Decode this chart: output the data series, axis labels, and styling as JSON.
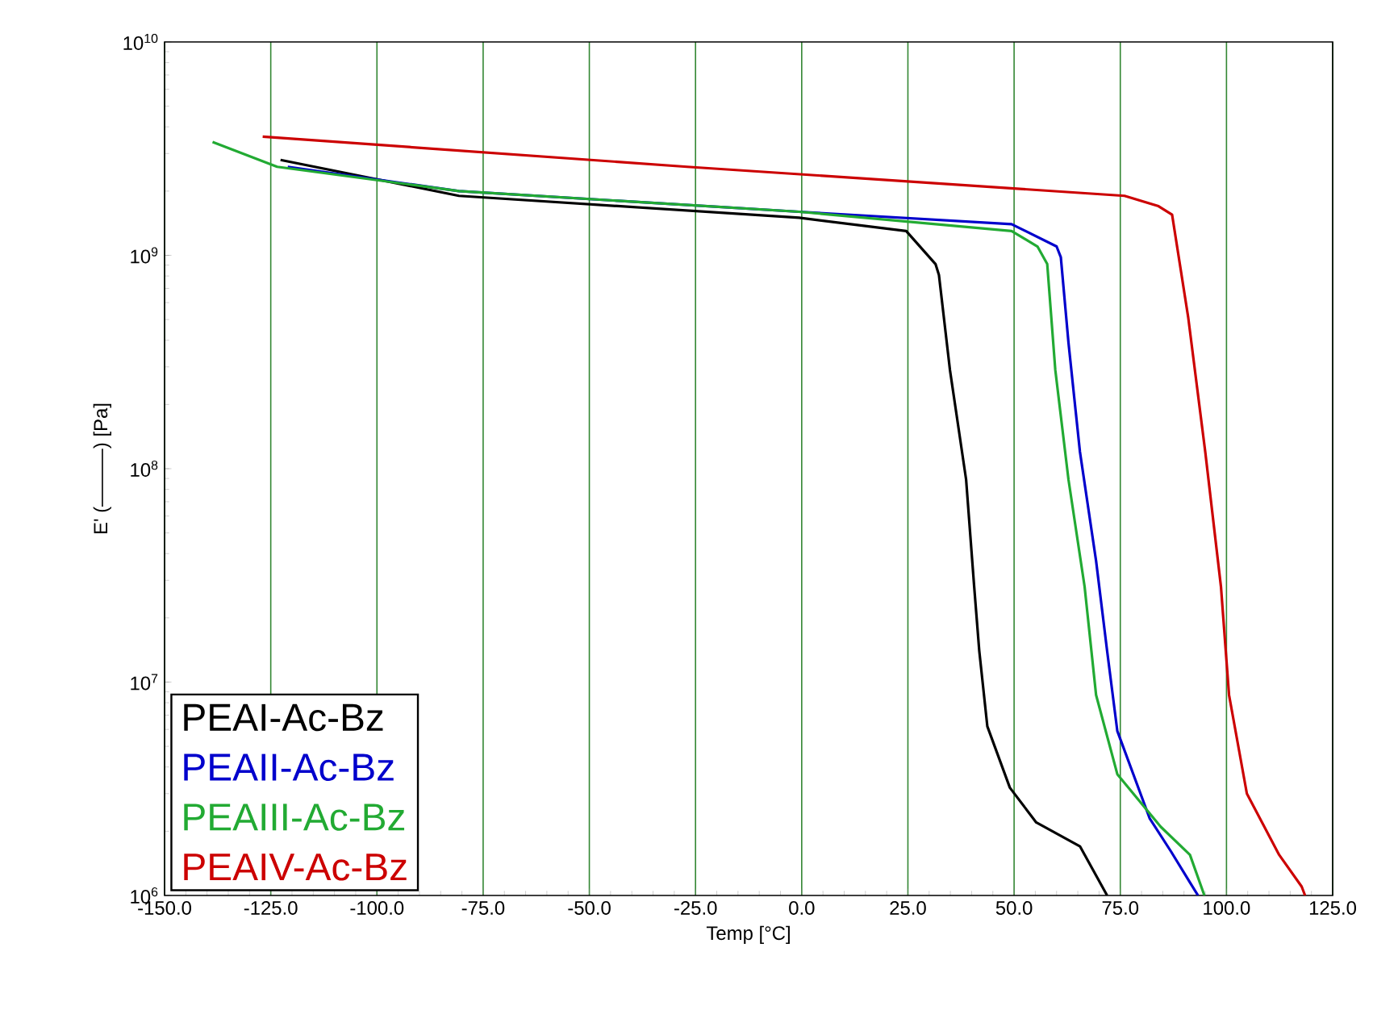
{
  "chart_data": {
    "type": "line",
    "xlabel": "Temp [°C]",
    "ylabel": "E' (———) [Pa]",
    "log": "y",
    "grid": "x",
    "legend": "bottom left",
    "marker": "none",
    "line_style": "solid",
    "xlim": [
      -150,
      125
    ],
    "xticks": [
      {
        "value": -150,
        "label": "-150.0"
      },
      {
        "value": -125,
        "label": "-125.0"
      },
      {
        "value": -100,
        "label": "-100.0"
      },
      {
        "value": -75,
        "label": "-75.0"
      },
      {
        "value": -50,
        "label": "-50.0"
      },
      {
        "value": -25,
        "label": "-25.0"
      },
      {
        "value": 0,
        "label": "0.0"
      },
      {
        "value": 25,
        "label": "25.0"
      },
      {
        "value": 50,
        "label": "50.0"
      },
      {
        "value": 75,
        "label": "75.0"
      },
      {
        "value": 100,
        "label": "100.0"
      },
      {
        "value": 125,
        "label": "125.0"
      }
    ],
    "ylim": [
      1000000.0,
      10000000000.0
    ],
    "yticks": [
      {
        "value": 1000000.0,
        "label": "10$^{6}$"
      },
      {
        "value": 10000000.0,
        "label": "10$^{7}$"
      },
      {
        "value": 100000000.0,
        "label": "10$^{8}$"
      },
      {
        "value": 1000000000.0,
        "label": "10$^{9}$"
      },
      {
        "value": 10000000000.0,
        "label": "10$^{10}$"
      }
    ],
    "series": [
      {
        "name": "PEAI-Ac-Bz",
        "color": "#000000",
        "x": [
          -122.7,
          -80.7,
          -0.6,
          24.6,
          31.5,
          32.3,
          34.9,
          38.7,
          40.6,
          41.8,
          43.7,
          49,
          55.2,
          65.5,
          71.9
        ],
        "values": [
          2800000000.0,
          1900000000.0,
          1500000000.0,
          1300000000.0,
          910000000.0,
          810000000.0,
          290000000.0,
          89000000.0,
          28000000.0,
          14000000.0,
          6200000.0,
          3200000.0,
          2200000.0,
          1700000.0,
          1000000.0
        ]
      },
      {
        "name": "PEAII-Ac-Bz",
        "color": "#0000cc",
        "x": [
          -121,
          -80.7,
          -0.6,
          49.4,
          60,
          61,
          62.8,
          65.5,
          69.3,
          71.9,
          74.3,
          81.9,
          87,
          91.4,
          93.3
        ],
        "values": [
          2600000000.0,
          2000000000.0,
          1600000000.0,
          1400000000.0,
          1100000000.0,
          980000000.0,
          390000000.0,
          120000000.0,
          37000000.0,
          14000000.0,
          5900000.0,
          2300000.0,
          1600000.0,
          1150000.0,
          1000000.0
        ]
      },
      {
        "name": "PEAIII-Ac-Bz",
        "color": "#22aa33",
        "x": [
          -138.7,
          -123.5,
          -80.7,
          -0.6,
          49.4,
          55.5,
          57.8,
          59.7,
          62.8,
          66.6,
          69.3,
          74.3,
          84.5,
          91.4,
          94.8
        ],
        "values": [
          3400000000.0,
          2600000000.0,
          2000000000.0,
          1600000000.0,
          1300000000.0,
          1100000000.0,
          910000000.0,
          290000000.0,
          89000000.0,
          28000000.0,
          8700000.0,
          3700000.0,
          2100000.0,
          1550000.0,
          1000000.0
        ]
      },
      {
        "name": "PEAIV-Ac-Bz",
        "color": "#cc0000",
        "x": [
          -126.9,
          -27,
          76,
          84,
          87.2,
          91,
          95,
          98.7,
          100.6,
          104.8,
          112.4,
          117.7,
          118.5
        ],
        "values": [
          3600000000.0,
          2600000000.0,
          1900000000.0,
          1700000000.0,
          1550000000.0,
          510000000.0,
          120000000.0,
          28000000.0,
          8700000.0,
          3000000.0,
          1550000.0,
          1100000.0,
          1000000.0
        ]
      }
    ]
  }
}
